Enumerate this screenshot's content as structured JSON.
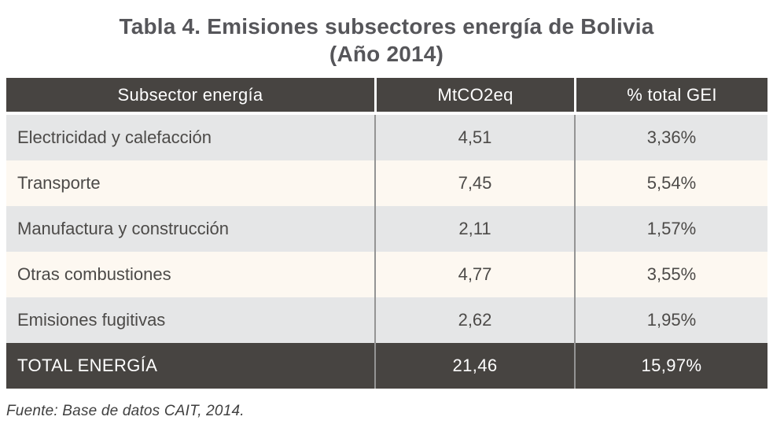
{
  "title": {
    "line1": "Tabla 4. Emisiones subsectores energía de Bolivia",
    "line2": "(Año 2014)"
  },
  "table": {
    "columns": [
      "Subsector energía",
      "MtCO2eq",
      "% total GEI"
    ],
    "rows": [
      {
        "label": "Electricidad y calefacción",
        "mtco2eq": "4,51",
        "pct": "3,36%"
      },
      {
        "label": "Transporte",
        "mtco2eq": "7,45",
        "pct": "5,54%"
      },
      {
        "label": "Manufactura y construcción",
        "mtco2eq": "2,11",
        "pct": "1,57%"
      },
      {
        "label": "Otras combustiones",
        "mtco2eq": "4,77",
        "pct": "3,55%"
      },
      {
        "label": "Emisiones fugitivas",
        "mtco2eq": "2,62",
        "pct": "1,95%"
      }
    ],
    "total": {
      "label": "TOTAL ENERGÍA",
      "mtco2eq": "21,46",
      "pct": "15,97%"
    }
  },
  "source": "Fuente: Base de datos CAIT, 2014.",
  "colors": {
    "header_bg": "#474441",
    "row_gray": "#e5e6e7",
    "row_cream": "#fdf8f1",
    "divider_gray": "#949494",
    "header_divider": "#ffffff",
    "title_text": "#56565a",
    "body_text": "#4c4a48"
  }
}
